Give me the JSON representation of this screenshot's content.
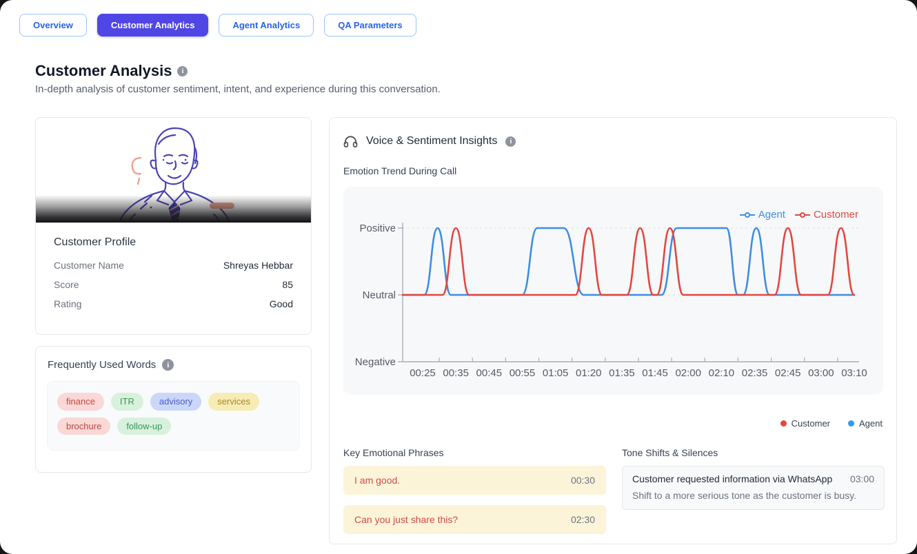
{
  "tabs": [
    {
      "label": "Overview",
      "active": false
    },
    {
      "label": "Customer Analytics",
      "active": true
    },
    {
      "label": "Agent Analytics",
      "active": false
    },
    {
      "label": "QA Parameters",
      "active": false
    }
  ],
  "header": {
    "title": "Customer Analysis",
    "subtitle": "In-depth analysis of customer sentiment, intent, and experience during this conversation."
  },
  "profile": {
    "title": "Customer Profile",
    "fields": [
      {
        "label": "Customer Name",
        "value": "Shreyas Hebbar"
      },
      {
        "label": "Score",
        "value": "85"
      },
      {
        "label": "Rating",
        "value": "Good"
      }
    ]
  },
  "words": {
    "title": "Frequently Used Words",
    "tags": [
      {
        "text": "finance",
        "color": "red"
      },
      {
        "text": "ITR",
        "color": "green"
      },
      {
        "text": "advisory",
        "color": "blue"
      },
      {
        "text": "services",
        "color": "yellow"
      },
      {
        "text": "brochure",
        "color": "red"
      },
      {
        "text": "follow-up",
        "color": "green"
      }
    ]
  },
  "insights": {
    "title": "Voice & Sentiment Insights",
    "chart_title": "Emotion Trend During Call"
  },
  "chart_data": {
    "type": "line",
    "title": "Emotion Trend During Call",
    "x_categories": [
      "00:25",
      "00:35",
      "00:45",
      "00:55",
      "01:05",
      "01:20",
      "01:35",
      "01:45",
      "02:00",
      "02:10",
      "02:35",
      "02:45",
      "03:00",
      "03:10"
    ],
    "y_tick_labels": [
      "Positive",
      "Neutral",
      "Negative"
    ],
    "y_values_map": {
      "Positive": 1,
      "Neutral": 0,
      "Negative": -1
    },
    "ylim": [
      -1,
      1
    ],
    "grid": "dashed horizontal lines at Positive and Neutral",
    "legend_position": "top-right",
    "series": [
      {
        "name": "Agent",
        "color": "#3d8de2",
        "points": [
          [
            -0.6,
            0
          ],
          [
            0.05,
            0
          ],
          [
            0.45,
            1
          ],
          [
            0.85,
            0
          ],
          [
            3.0,
            0
          ],
          [
            3.45,
            1
          ],
          [
            4.25,
            1
          ],
          [
            4.85,
            0
          ],
          [
            7.2,
            0
          ],
          [
            7.65,
            1
          ],
          [
            9.15,
            1
          ],
          [
            9.5,
            0
          ],
          [
            9.65,
            0
          ],
          [
            10.05,
            1
          ],
          [
            10.45,
            0
          ],
          [
            13,
            0
          ]
        ]
      },
      {
        "name": "Customer",
        "color": "#e2473e",
        "points": [
          [
            -0.6,
            0
          ],
          [
            0.6,
            0
          ],
          [
            1.0,
            1
          ],
          [
            1.4,
            0
          ],
          [
            4.6,
            0
          ],
          [
            5.0,
            1
          ],
          [
            5.4,
            0
          ],
          [
            6.15,
            0
          ],
          [
            6.55,
            1
          ],
          [
            6.95,
            0
          ],
          [
            7.05,
            0
          ],
          [
            7.45,
            1
          ],
          [
            7.85,
            0
          ],
          [
            10.6,
            0
          ],
          [
            11.0,
            1
          ],
          [
            11.4,
            0
          ],
          [
            12.2,
            0
          ],
          [
            12.6,
            1
          ],
          [
            13.0,
            0
          ]
        ]
      }
    ]
  },
  "bottom_legend": [
    {
      "label": "Customer",
      "color": "#e8453c"
    },
    {
      "label": "Agent",
      "color": "#2d9bf0"
    }
  ],
  "phrases": {
    "title": "Key Emotional Phrases",
    "items": [
      {
        "text": "I am good.",
        "time": "00:30"
      },
      {
        "text": "Can you just share this?",
        "time": "02:30"
      }
    ]
  },
  "tones": {
    "title": "Tone Shifts & Silences",
    "items": [
      {
        "text": "Customer requested information via WhatsApp",
        "time": "03:00",
        "note": "Shift to a more serious tone as the customer is busy."
      }
    ]
  }
}
